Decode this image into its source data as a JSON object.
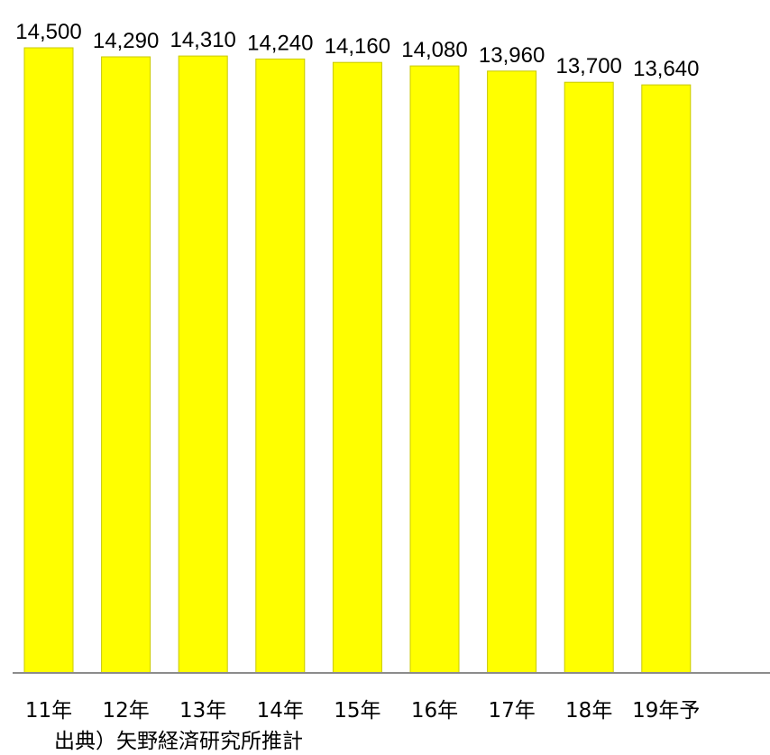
{
  "chart_data": {
    "type": "bar",
    "categories": [
      "11年",
      "12年",
      "13年",
      "14年",
      "15年",
      "16年",
      "17年",
      "18年",
      "19年予"
    ],
    "values": [
      14500,
      14290,
      14310,
      14240,
      14160,
      14080,
      13960,
      13700,
      13640
    ],
    "data_labels": [
      "14,500",
      "14,290",
      "14,310",
      "14,240",
      "14,160",
      "14,080",
      "13,960",
      "13,700",
      "13,640"
    ],
    "title": "",
    "xlabel": "",
    "ylabel": "",
    "ylim": [
      0,
      14500
    ],
    "grid": false,
    "legend": "none",
    "bar_color": "#FFFF00",
    "bar_edge_color": "#C8C800",
    "axis_color": "#8C8C8C",
    "source_note": "出典）矢野経済研究所推計"
  }
}
